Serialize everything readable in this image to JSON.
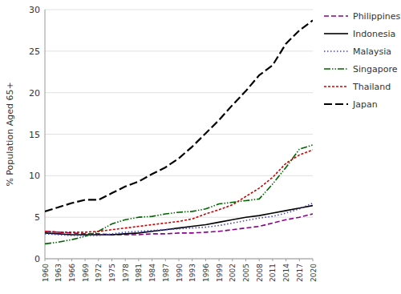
{
  "chart_data": {
    "type": "line",
    "x": [
      1960,
      1963,
      1966,
      1969,
      1972,
      1975,
      1978,
      1981,
      1984,
      1987,
      1990,
      1993,
      1996,
      1999,
      2002,
      2005,
      2008,
      2011,
      2014,
      2017,
      2020
    ],
    "xlim": [
      1960,
      2020
    ],
    "xticks": [
      1960,
      1963,
      1966,
      1969,
      1972,
      1975,
      1978,
      1981,
      1984,
      1987,
      1990,
      1993,
      1996,
      1999,
      2002,
      2005,
      2008,
      2011,
      2014,
      2017,
      2020
    ],
    "ylabel": "% Population Aged 65+",
    "ylim": [
      0,
      30
    ],
    "yticks": [
      0,
      5,
      10,
      15,
      20,
      25,
      30
    ],
    "grid": true,
    "legend": "right",
    "series": [
      {
        "name": "Philippines",
        "color": "#8B008B",
        "line_style": "dashed",
        "values": [
          3.3,
          3.2,
          3.1,
          3.0,
          3.0,
          2.9,
          2.9,
          2.9,
          3.0,
          3.0,
          3.1,
          3.1,
          3.2,
          3.3,
          3.5,
          3.7,
          3.9,
          4.3,
          4.7,
          5.0,
          5.4
        ]
      },
      {
        "name": "Indonesia",
        "color": "#000000",
        "line_style": "solid",
        "values": [
          3.1,
          3.0,
          2.9,
          2.9,
          2.9,
          2.9,
          3.0,
          3.1,
          3.3,
          3.5,
          3.7,
          3.9,
          4.1,
          4.4,
          4.7,
          5.0,
          5.2,
          5.5,
          5.8,
          6.1,
          6.4
        ]
      },
      {
        "name": "Malaysia",
        "color": "#4444bb",
        "line_style": "dotted",
        "values": [
          3.0,
          2.9,
          2.8,
          2.8,
          2.8,
          3.0,
          3.2,
          3.3,
          3.4,
          3.5,
          3.6,
          3.7,
          3.8,
          4.0,
          4.3,
          4.6,
          4.9,
          5.1,
          5.5,
          6.0,
          6.7
        ]
      },
      {
        "name": "Singapore",
        "color": "#006400",
        "line_style": "dashdotdot",
        "values": [
          1.8,
          2.0,
          2.3,
          2.7,
          3.3,
          4.2,
          4.7,
          5.0,
          5.1,
          5.4,
          5.6,
          5.7,
          6.0,
          6.6,
          6.8,
          7.0,
          7.2,
          9.0,
          11.0,
          13.2,
          13.7
        ]
      },
      {
        "name": "Thailand",
        "color": "#cc0000",
        "line_style": "shortdashed",
        "values": [
          3.3,
          3.2,
          3.2,
          3.2,
          3.3,
          3.5,
          3.7,
          3.9,
          4.1,
          4.3,
          4.5,
          4.8,
          5.4,
          5.9,
          6.5,
          7.5,
          8.5,
          9.8,
          11.5,
          12.5,
          13.1
        ]
      },
      {
        "name": "Japan",
        "color": "#000000",
        "line_style": "longdashed",
        "values": [
          5.7,
          6.2,
          6.7,
          7.1,
          7.1,
          7.9,
          8.7,
          9.3,
          10.2,
          11.0,
          12.1,
          13.5,
          15.1,
          16.7,
          18.5,
          20.2,
          22.1,
          23.3,
          25.9,
          27.5,
          28.7
        ]
      }
    ]
  }
}
